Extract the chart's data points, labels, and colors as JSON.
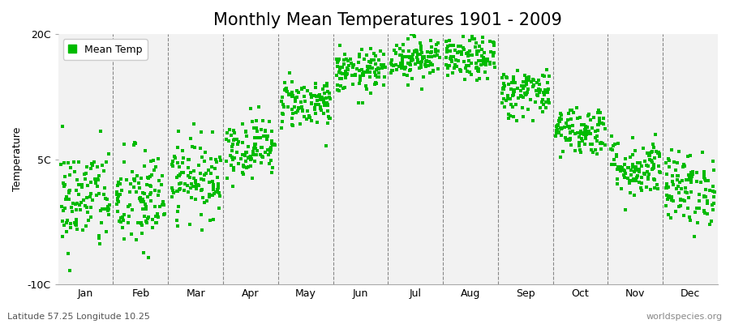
{
  "title": "Monthly Mean Temperatures 1901 - 2009",
  "ylabel": "Temperature",
  "subtitle": "Latitude 57.25 Longitude 10.25",
  "watermark": "worldspecies.org",
  "legend_label": "Mean Temp",
  "dot_color": "#00bb00",
  "background_color": "#ffffff",
  "plot_background": "#f2f2f2",
  "ylim": [
    -10,
    20
  ],
  "yticks": [
    -10,
    5,
    20
  ],
  "ytick_labels": [
    "-10C",
    "5C",
    "20C"
  ],
  "months": [
    "Jan",
    "Feb",
    "Mar",
    "Apr",
    "May",
    "Jun",
    "Jul",
    "Aug",
    "Sep",
    "Oct",
    "Nov",
    "Dec"
  ],
  "monthly_means": [
    0.2,
    0.0,
    2.8,
    6.5,
    11.8,
    15.5,
    17.2,
    17.0,
    13.0,
    8.5,
    4.0,
    1.5
  ],
  "monthly_stds": [
    3.2,
    3.2,
    2.3,
    1.8,
    1.5,
    1.3,
    1.3,
    1.3,
    1.5,
    1.5,
    1.8,
    2.2
  ],
  "n_years": 109,
  "seed": 42,
  "title_fontsize": 15,
  "axis_label_fontsize": 9,
  "tick_fontsize": 9,
  "legend_fontsize": 9,
  "subtitle_fontsize": 8,
  "watermark_fontsize": 8
}
